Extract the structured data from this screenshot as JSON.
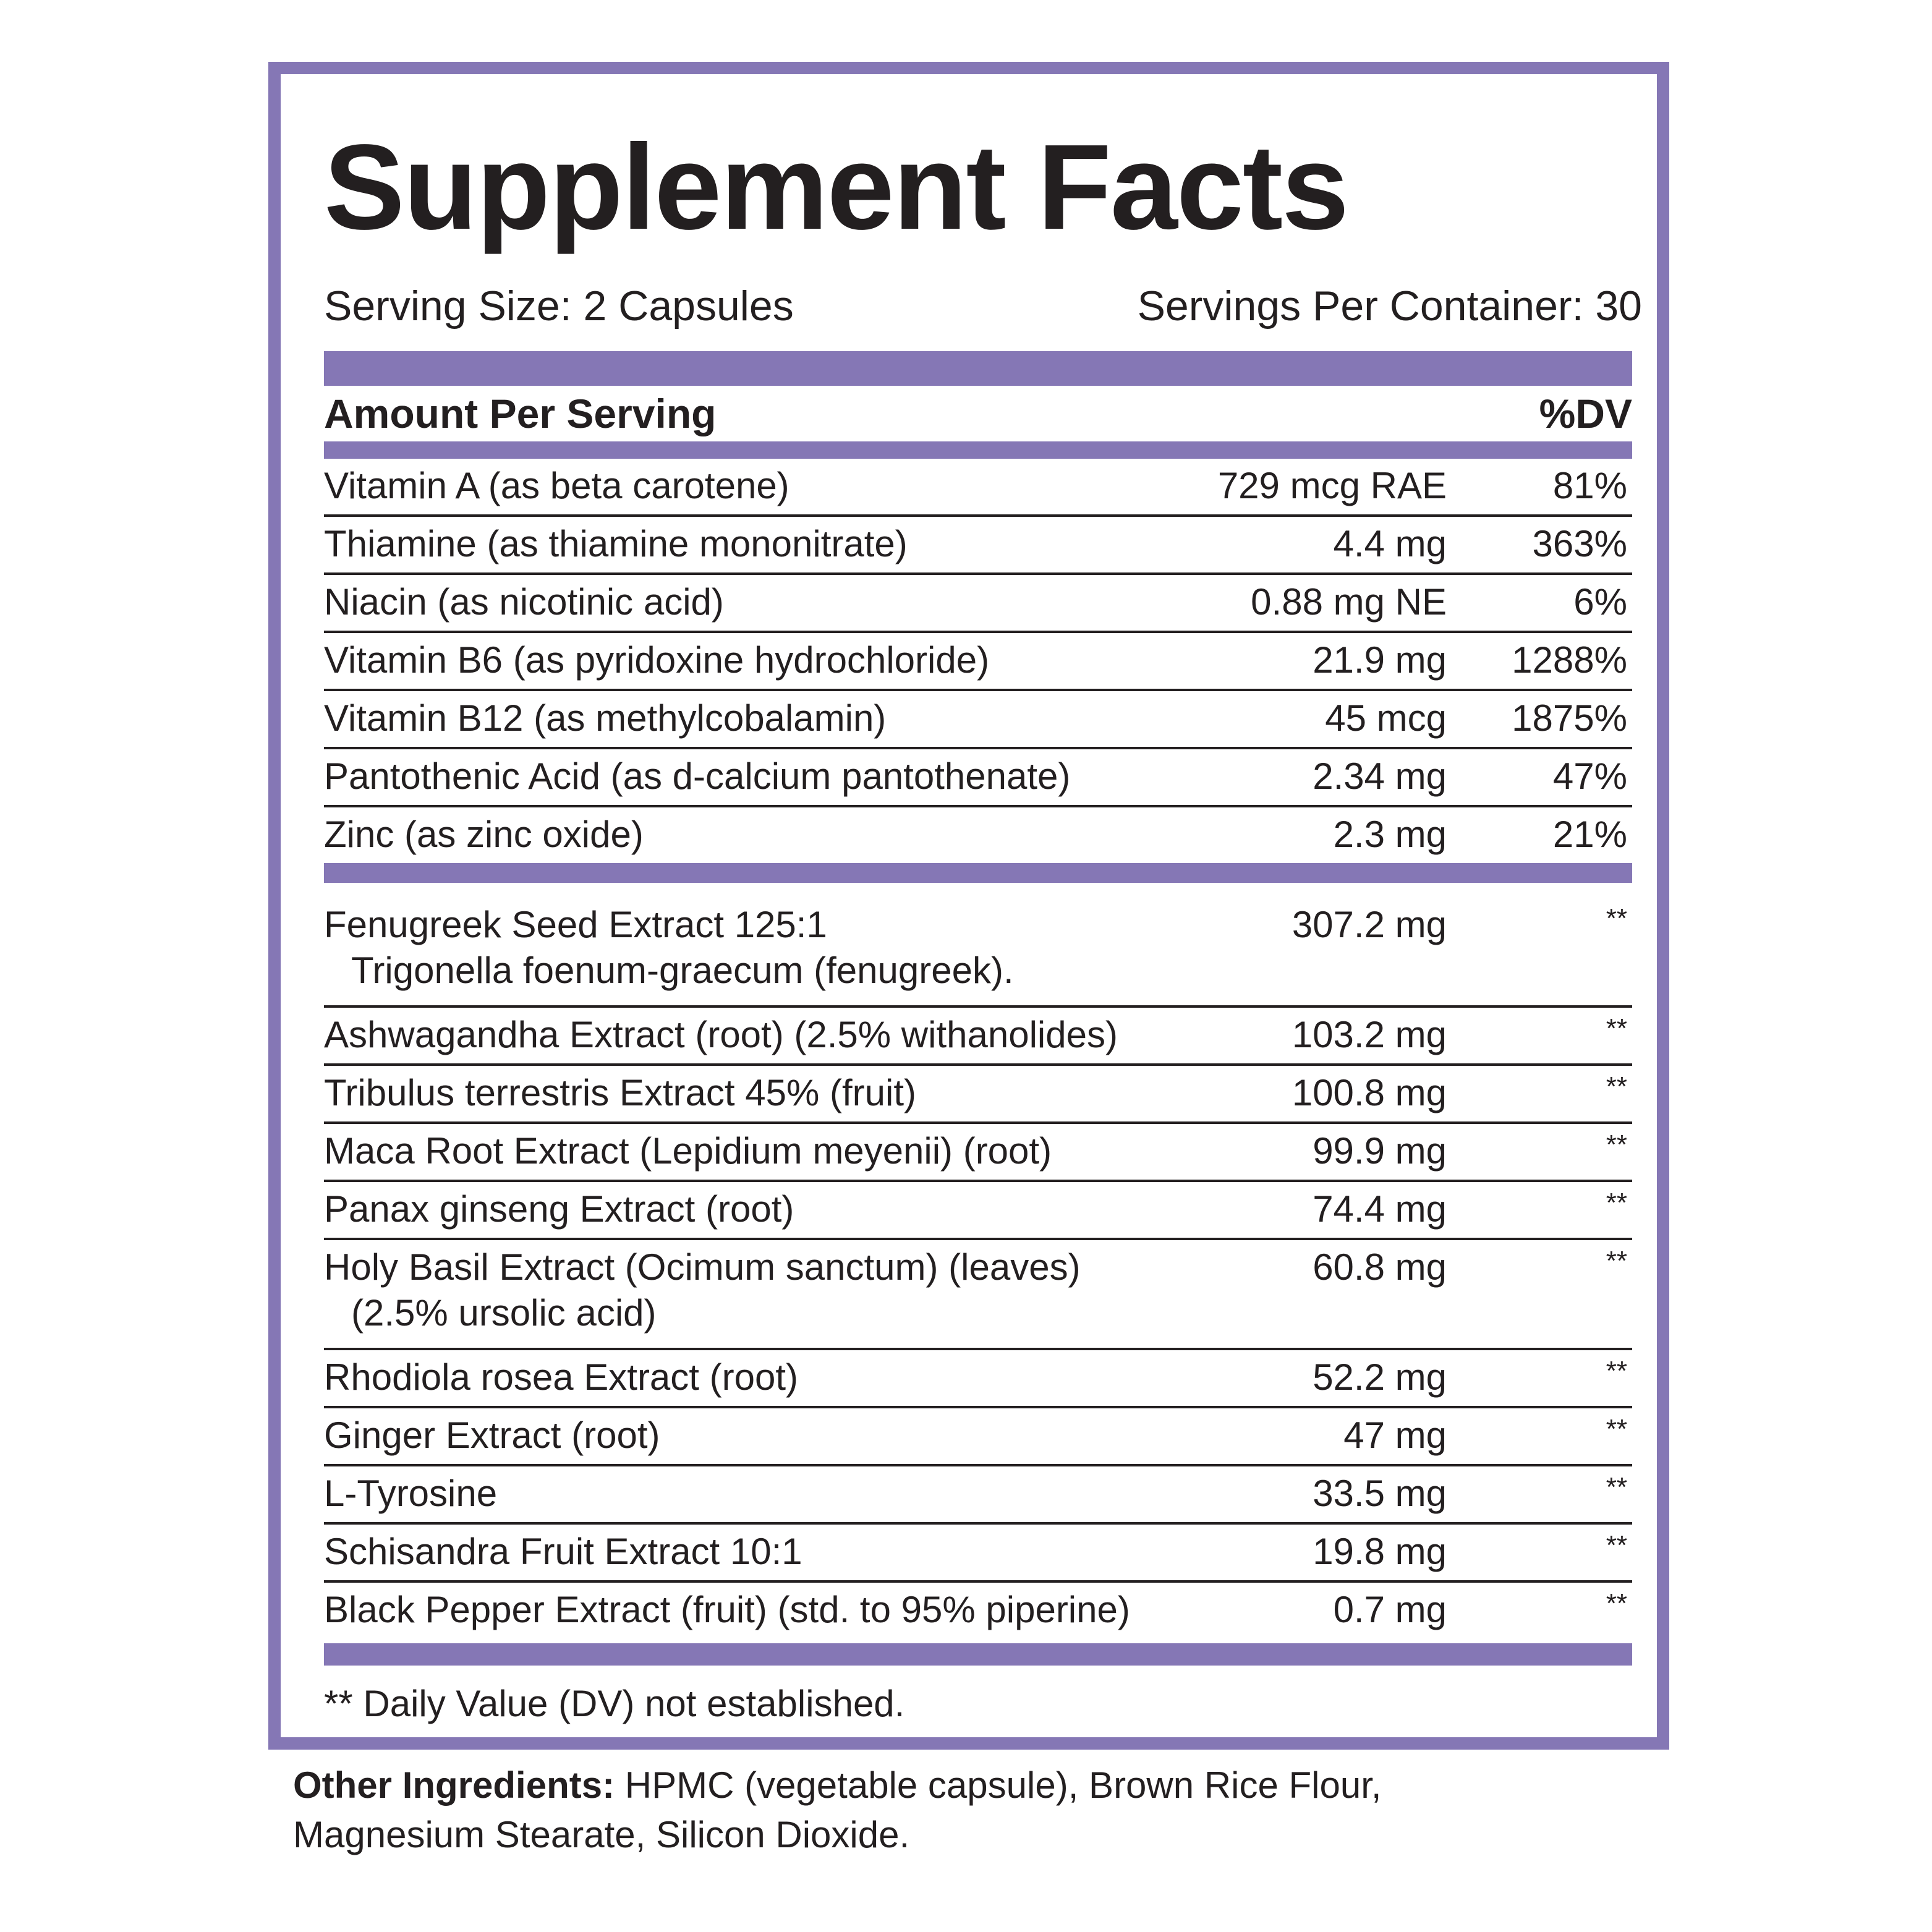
{
  "header": {
    "title": "Supplement Facts",
    "serving_size": "Serving Size: 2 Capsules",
    "servings_per_container": "Servings Per Container: 30"
  },
  "table": {
    "column_headers": [
      "Amount Per Serving",
      "%DV"
    ],
    "vitamins": [
      {
        "name": "Vitamin A (as beta carotene)",
        "amount": "729 mcg RAE",
        "dv": "81%"
      },
      {
        "name": "Thiamine (as thiamine mononitrate)",
        "amount": "4.4 mg",
        "dv": "363%"
      },
      {
        "name": "Niacin (as nicotinic acid)",
        "amount": "0.88 mg NE",
        "dv": "6%"
      },
      {
        "name": "Vitamin B6 (as pyridoxine hydrochloride)",
        "amount": "21.9 mg",
        "dv": "1288%"
      },
      {
        "name": "Vitamin B12 (as methylcobalamin)",
        "amount": "45 mcg",
        "dv": "1875%"
      },
      {
        "name": "Pantothenic Acid (as d-calcium pantothenate)",
        "amount": "2.34 mg",
        "dv": "47%"
      },
      {
        "name": "Zinc (as zinc oxide)",
        "amount": "2.3 mg",
        "dv": "21%"
      }
    ],
    "botanicals": [
      {
        "name": "Fenugreek Seed Extract 125:1",
        "detail": "Trigonella foenum-graecum (fenugreek).",
        "amount": "307.2 mg",
        "dv": "**"
      },
      {
        "name": "Ashwagandha Extract (root) (2.5% withanolides)",
        "amount": "103.2 mg",
        "dv": "**"
      },
      {
        "name": "Tribulus terrestris Extract 45% (fruit)",
        "amount": "100.8 mg",
        "dv": "**"
      },
      {
        "name": "Maca Root Extract (Lepidium meyenii) (root)",
        "amount": "99.9 mg",
        "dv": "**"
      },
      {
        "name": "Panax ginseng Extract (root)",
        "amount": "74.4 mg",
        "dv": "**"
      },
      {
        "name": "Holy Basil Extract (Ocimum sanctum) (leaves)",
        "detail": "(2.5% ursolic acid)",
        "amount": "60.8 mg",
        "dv": "**"
      },
      {
        "name": "Rhodiola rosea Extract (root)",
        "amount": "52.2 mg",
        "dv": "**"
      },
      {
        "name": "Ginger Extract (root)",
        "amount": "47 mg",
        "dv": "**"
      },
      {
        "name": "L-Tyrosine",
        "amount": "33.5 mg",
        "dv": "**"
      },
      {
        "name": "Schisandra Fruit Extract 10:1",
        "amount": "19.8 mg",
        "dv": "**"
      },
      {
        "name": "Black Pepper Extract (fruit) (std. to 95% piperine)",
        "amount": "0.7 mg",
        "dv": "**"
      }
    ]
  },
  "footnote": "** Daily Value (DV) not established.",
  "other_ingredients": {
    "label": "Other Ingredients:",
    "text": " HPMC (vegetable capsule), Brown Rice Flour, Magnesium Stearate, Silicon Dioxide."
  }
}
